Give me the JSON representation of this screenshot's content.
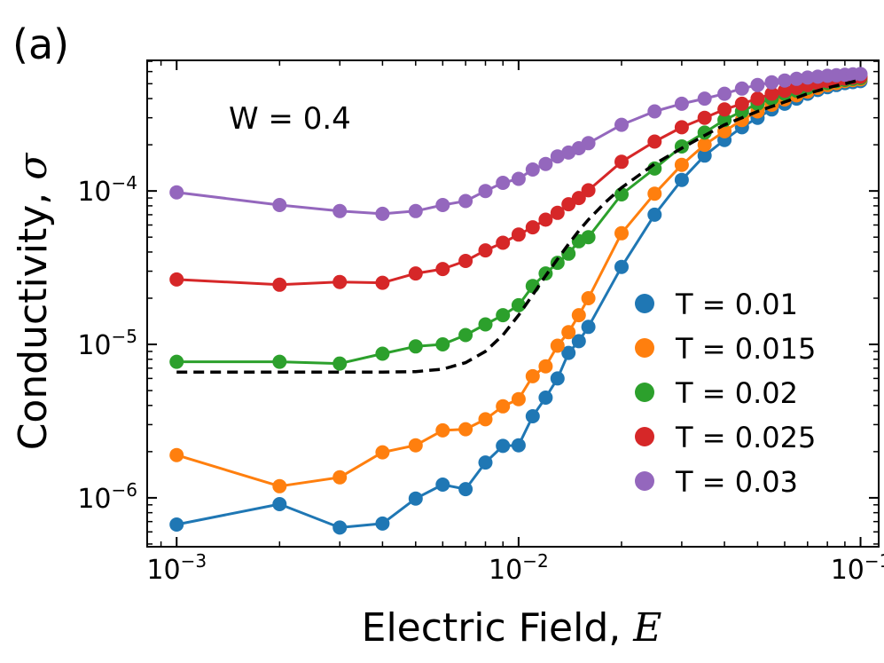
{
  "chart_data": {
    "type": "line",
    "panel_label": "(a)",
    "annotation": "W = 0.4",
    "xlabel_text": "Electric Field, ",
    "xlabel_symbol": "E",
    "ylabel_text": "Conductivity, ",
    "ylabel_symbol": "σ",
    "xscale": "log",
    "yscale": "log",
    "xlim": [
      0.00082,
      0.113
    ],
    "ylim": [
      4.8e-07,
      0.00071
    ],
    "x_ticks": [
      {
        "value": 0.001,
        "base": "10",
        "exp": "−3"
      },
      {
        "value": 0.01,
        "base": "10",
        "exp": "−2"
      },
      {
        "value": 0.1,
        "base": "10",
        "exp": "−1"
      }
    ],
    "y_ticks": [
      {
        "value": 1e-06,
        "base": "10",
        "exp": "−6"
      },
      {
        "value": 1e-05,
        "base": "10",
        "exp": "−5"
      },
      {
        "value": 0.0001,
        "base": "10",
        "exp": "−4"
      }
    ],
    "legend_position": "lower-right",
    "series": [
      {
        "name": "T = 0.01",
        "color": "#1f77b4",
        "x": [
          0.001,
          0.002,
          0.003,
          0.004,
          0.005,
          0.006,
          0.007,
          0.008,
          0.009,
          0.01,
          0.011,
          0.012,
          0.013,
          0.014,
          0.015,
          0.016,
          0.02,
          0.025,
          0.03,
          0.035,
          0.04,
          0.045,
          0.05,
          0.055,
          0.06,
          0.065,
          0.07,
          0.075,
          0.08,
          0.085,
          0.09,
          0.095,
          0.1
        ],
        "y": [
          6.7e-07,
          9.1e-07,
          6.4e-07,
          6.8e-07,
          9.9e-07,
          1.22e-06,
          1.14e-06,
          1.7e-06,
          2.18e-06,
          2.2e-06,
          3.4e-06,
          4.5e-06,
          6e-06,
          8.8e-06,
          1.05e-05,
          1.3e-05,
          3.2e-05,
          7e-05,
          0.000118,
          0.00017,
          0.000215,
          0.00026,
          0.0003,
          0.00034,
          0.00037,
          0.0004,
          0.00043,
          0.000455,
          0.000475,
          0.00049,
          0.000505,
          0.000512,
          0.00052
        ]
      },
      {
        "name": "T = 0.015",
        "color": "#ff7f0e",
        "x": [
          0.001,
          0.002,
          0.003,
          0.004,
          0.005,
          0.006,
          0.007,
          0.008,
          0.009,
          0.01,
          0.011,
          0.012,
          0.013,
          0.014,
          0.015,
          0.016,
          0.02,
          0.025,
          0.03,
          0.035,
          0.04,
          0.045,
          0.05,
          0.055,
          0.06,
          0.065,
          0.07,
          0.075,
          0.08,
          0.085,
          0.09,
          0.095,
          0.1
        ],
        "y": [
          1.9e-06,
          1.19e-06,
          1.36e-06,
          1.98e-06,
          2.2e-06,
          2.75e-06,
          2.8e-06,
          3.25e-06,
          3.95e-06,
          4.4e-06,
          6.2e-06,
          7.2e-06,
          9.8e-06,
          1.2e-05,
          1.55e-05,
          2e-05,
          5.3e-05,
          9.6e-05,
          0.000148,
          0.0002,
          0.000245,
          0.00029,
          0.00033,
          0.000365,
          0.000395,
          0.00042,
          0.000445,
          0.00047,
          0.00049,
          0.000505,
          0.00052,
          0.000528,
          0.000535
        ]
      },
      {
        "name": "T = 0.02",
        "color": "#2ca02c",
        "x": [
          0.001,
          0.002,
          0.003,
          0.004,
          0.005,
          0.006,
          0.007,
          0.008,
          0.009,
          0.01,
          0.011,
          0.012,
          0.013,
          0.014,
          0.015,
          0.016,
          0.02,
          0.025,
          0.03,
          0.035,
          0.04,
          0.045,
          0.05,
          0.055,
          0.06,
          0.065,
          0.07,
          0.075,
          0.08,
          0.085,
          0.09,
          0.095,
          0.1
        ],
        "y": [
          7.7e-06,
          7.7e-06,
          7.5e-06,
          8.7e-06,
          9.7e-06,
          1e-05,
          1.15e-05,
          1.35e-05,
          1.55e-05,
          1.8e-05,
          2.4e-05,
          2.9e-05,
          3.4e-05,
          3.9e-05,
          4.7e-05,
          5e-05,
          9.5e-05,
          0.00014,
          0.000195,
          0.00024,
          0.00029,
          0.00033,
          0.00037,
          0.0004,
          0.00043,
          0.00045,
          0.00047,
          0.00049,
          0.000505,
          0.00052,
          0.00053,
          0.000538,
          0.000545
        ]
      },
      {
        "name": "T = 0.025",
        "color": "#d62728",
        "x": [
          0.001,
          0.002,
          0.003,
          0.004,
          0.005,
          0.006,
          0.007,
          0.008,
          0.009,
          0.01,
          0.011,
          0.012,
          0.013,
          0.014,
          0.015,
          0.016,
          0.02,
          0.025,
          0.03,
          0.035,
          0.04,
          0.045,
          0.05,
          0.055,
          0.06,
          0.065,
          0.07,
          0.075,
          0.08,
          0.085,
          0.09,
          0.095,
          0.1
        ],
        "y": [
          2.65e-05,
          2.45e-05,
          2.55e-05,
          2.52e-05,
          2.9e-05,
          3.1e-05,
          3.5e-05,
          4.1e-05,
          4.6e-05,
          5.2e-05,
          5.8e-05,
          6.5e-05,
          7.2e-05,
          8.2e-05,
          9e-05,
          0.000101,
          0.000155,
          0.00021,
          0.00026,
          0.0003,
          0.00034,
          0.00037,
          0.0004,
          0.00043,
          0.00045,
          0.00047,
          0.00049,
          0.000505,
          0.00052,
          0.00053,
          0.00054,
          0.000548,
          0.000555
        ]
      },
      {
        "name": "T = 0.03",
        "color": "#9467bd",
        "x": [
          0.001,
          0.002,
          0.003,
          0.004,
          0.005,
          0.006,
          0.007,
          0.008,
          0.009,
          0.01,
          0.011,
          0.012,
          0.013,
          0.014,
          0.015,
          0.016,
          0.02,
          0.025,
          0.03,
          0.035,
          0.04,
          0.045,
          0.05,
          0.055,
          0.06,
          0.065,
          0.07,
          0.075,
          0.08,
          0.085,
          0.09,
          0.095,
          0.1
        ],
        "y": [
          9.8e-05,
          8.1e-05,
          7.4e-05,
          7.1e-05,
          7.4e-05,
          8.1e-05,
          8.6e-05,
          0.0001,
          0.000113,
          0.00012,
          0.000138,
          0.00015,
          0.000168,
          0.000178,
          0.00019,
          0.000205,
          0.00027,
          0.00033,
          0.00037,
          0.0004,
          0.00043,
          0.000465,
          0.00049,
          0.00051,
          0.000525,
          0.000538,
          0.000548,
          0.000556,
          0.000563,
          0.000568,
          0.000572,
          0.000575,
          0.000578
        ]
      }
    ],
    "reference_curve": {
      "style": "dashed",
      "color": "#000000",
      "x": [
        0.001,
        0.002,
        0.003,
        0.004,
        0.005,
        0.006,
        0.007,
        0.008,
        0.009,
        0.01,
        0.011,
        0.012,
        0.013,
        0.014,
        0.015,
        0.016,
        0.018,
        0.02,
        0.025,
        0.03,
        0.035,
        0.04,
        0.045,
        0.05,
        0.06,
        0.07,
        0.08,
        0.09,
        0.1
      ],
      "y": [
        6.6e-06,
        6.6e-06,
        6.6e-06,
        6.6e-06,
        6.65e-06,
        6.9e-06,
        7.6e-06,
        9e-06,
        1.15e-05,
        1.55e-05,
        2.1e-05,
        2.8e-05,
        3.6e-05,
        4.5e-05,
        5.5e-05,
        6.5e-05,
        8.5e-05,
        0.000105,
        0.00015,
        0.00019,
        0.00023,
        0.00027,
        0.0003,
        0.00033,
        0.00038,
        0.00043,
        0.00047,
        0.0005,
        0.00053
      ]
    }
  }
}
